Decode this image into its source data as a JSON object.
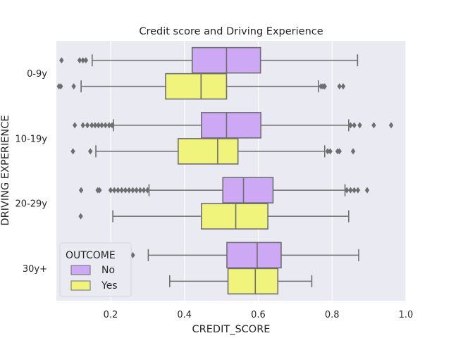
{
  "chart_data": {
    "type": "box",
    "orientation": "horizontal",
    "title": "Credit score and Driving Experience",
    "xlabel": "CREDIT_SCORE",
    "ylabel": "DRIVING EXPERIENCE",
    "xlim": [
      0.053,
      1.0
    ],
    "xticks": [
      0.2,
      0.4,
      0.6,
      0.8,
      1.0
    ],
    "xtick_labels": [
      "0.2",
      "0.4",
      "0.6",
      "0.8",
      "1.0"
    ],
    "categories": [
      "0-9y",
      "10-19y",
      "20-29y",
      "30y+"
    ],
    "grid": true,
    "legend": {
      "title": "OUTCOME",
      "placement": "lower-left"
    },
    "series": [
      {
        "name": "No",
        "color": "#cda8f5",
        "boxes": [
          {
            "whislo": 0.15,
            "q1": 0.421,
            "med": 0.514,
            "q3": 0.606,
            "whishi": 0.869,
            "fliers": [
              0.067,
              0.116,
              0.125,
              0.133
            ]
          },
          {
            "whislo": 0.208,
            "q1": 0.446,
            "med": 0.514,
            "q3": 0.607,
            "whishi": 0.845,
            "fliers": [
              0.103,
              0.125,
              0.137,
              0.149,
              0.158,
              0.167,
              0.176,
              0.186,
              0.196,
              0.204,
              0.85,
              0.86,
              0.875,
              0.913,
              0.96
            ]
          },
          {
            "whislo": 0.304,
            "q1": 0.504,
            "med": 0.56,
            "q3": 0.64,
            "whishi": 0.835,
            "fliers": [
              0.12,
              0.165,
              0.17,
              0.2,
              0.21,
              0.22,
              0.23,
              0.24,
              0.25,
              0.26,
              0.27,
              0.28,
              0.29,
              0.3,
              0.84,
              0.85,
              0.86,
              0.87,
              0.895
            ]
          },
          {
            "whislo": 0.302,
            "q1": 0.515,
            "med": 0.597,
            "q3": 0.662,
            "whishi": 0.872,
            "fliers": [
              0.26
            ]
          }
        ]
      },
      {
        "name": "Yes",
        "color": "#f0f37c",
        "boxes": [
          {
            "whislo": 0.12,
            "q1": 0.349,
            "med": 0.445,
            "q3": 0.514,
            "whishi": 0.763,
            "fliers": [
              0.06,
              0.065,
              0.1,
              0.77,
              0.775,
              0.78,
              0.82,
              0.83
            ]
          },
          {
            "whislo": 0.16,
            "q1": 0.383,
            "med": 0.49,
            "q3": 0.545,
            "whishi": 0.78,
            "fliers": [
              0.098,
              0.145,
              0.788,
              0.795,
              0.815,
              0.82,
              0.857
            ]
          },
          {
            "whislo": 0.206,
            "q1": 0.446,
            "med": 0.539,
            "q3": 0.626,
            "whishi": 0.845,
            "fliers": [
              0.119
            ]
          },
          {
            "whislo": 0.36,
            "q1": 0.518,
            "med": 0.592,
            "q3": 0.653,
            "whishi": 0.745,
            "fliers": []
          }
        ]
      }
    ]
  }
}
